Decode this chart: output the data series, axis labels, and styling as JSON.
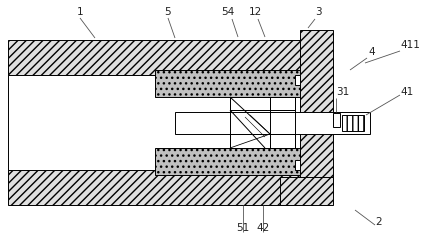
{
  "bg_color": "#ffffff",
  "lc": "#000000",
  "fc_hatch_outer": "#e8e8e8",
  "fc_hatch_inner": "#c8c8c8",
  "fig_width": 4.43,
  "fig_height": 2.45,
  "dpi": 100,
  "lw": 0.7,
  "fs": 7.5
}
